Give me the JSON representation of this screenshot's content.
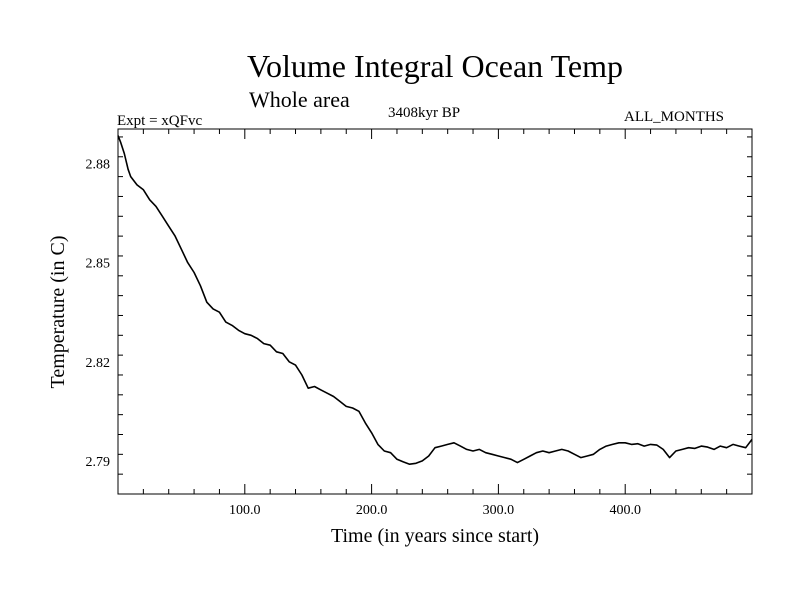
{
  "chart_data": {
    "type": "line",
    "title": "Volume Integral Ocean Temp",
    "subtitle": "Whole area",
    "experiment_label": "Expt = xQFvc",
    "period_label": "3408kyr BP",
    "months_label": "ALL_MONTHS",
    "xlabel": "Time (in years since start)",
    "ylabel": "Temperature (in C)",
    "xlim": [
      0,
      500
    ],
    "ylim": [
      2.78,
      2.8904
    ],
    "xticks": [
      100,
      200,
      300,
      400
    ],
    "xtick_labels": [
      "100.0",
      "200.0",
      "300.0",
      "400.0"
    ],
    "yticks": [
      2.79,
      2.82,
      2.85,
      2.88
    ],
    "ytick_labels": [
      "2.79",
      "2.82",
      "2.85",
      "2.88"
    ],
    "grid": false,
    "series": [
      {
        "name": "Volume Integral Ocean Temp",
        "x": [
          0,
          2,
          5,
          8,
          10,
          15,
          20,
          25,
          30,
          35,
          40,
          45,
          50,
          55,
          60,
          65,
          70,
          75,
          80,
          85,
          90,
          95,
          100,
          105,
          110,
          115,
          120,
          125,
          130,
          135,
          140,
          145,
          150,
          155,
          160,
          165,
          170,
          175,
          180,
          185,
          190,
          195,
          200,
          205,
          210,
          215,
          220,
          225,
          230,
          235,
          240,
          245,
          250,
          255,
          260,
          265,
          270,
          275,
          280,
          285,
          290,
          295,
          300,
          305,
          310,
          315,
          320,
          325,
          330,
          335,
          340,
          345,
          350,
          355,
          360,
          365,
          370,
          375,
          380,
          385,
          390,
          395,
          400,
          405,
          410,
          415,
          420,
          425,
          430,
          435,
          440,
          445,
          450,
          455,
          460,
          465,
          470,
          475,
          480,
          485,
          490,
          495,
          500
        ],
        "values": [
          2.8884,
          2.8865,
          2.883,
          2.8782,
          2.876,
          2.8735,
          2.872,
          2.869,
          2.867,
          2.864,
          2.861,
          2.858,
          2.854,
          2.85,
          2.847,
          2.843,
          2.838,
          2.836,
          2.835,
          2.832,
          2.831,
          2.8295,
          2.8285,
          2.828,
          2.827,
          2.8255,
          2.825,
          2.823,
          2.8225,
          2.82,
          2.819,
          2.816,
          2.812,
          2.8125,
          2.8115,
          2.8105,
          2.8095,
          2.808,
          2.8065,
          2.806,
          2.805,
          2.8015,
          2.7985,
          2.795,
          2.793,
          2.7925,
          2.7905,
          2.7897,
          2.789,
          2.7893,
          2.79,
          2.7915,
          2.794,
          2.7945,
          2.795,
          2.7955,
          2.7945,
          2.7935,
          2.793,
          2.7935,
          2.7925,
          2.792,
          2.7915,
          2.791,
          2.7905,
          2.7895,
          2.7905,
          2.7915,
          2.7925,
          2.793,
          2.7925,
          2.793,
          2.7935,
          2.793,
          2.792,
          2.791,
          2.7915,
          2.792,
          2.7935,
          2.7945,
          2.795,
          2.7955,
          2.7955,
          2.795,
          2.7952,
          2.7945,
          2.795,
          2.7948,
          2.7935,
          2.791,
          2.793,
          2.7935,
          2.794,
          2.7938,
          2.7945,
          2.7942,
          2.7935,
          2.7945,
          2.794,
          2.795,
          2.7945,
          2.794,
          2.7965
        ],
        "color": "#000000"
      }
    ]
  }
}
